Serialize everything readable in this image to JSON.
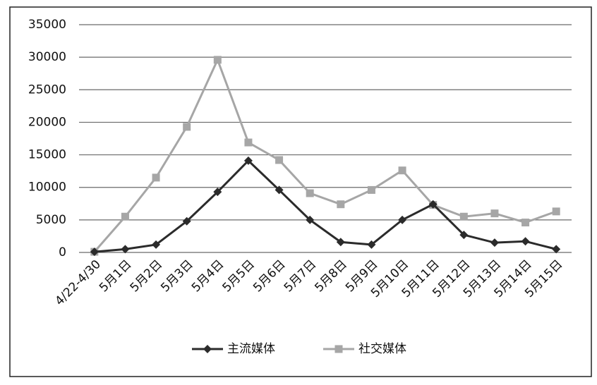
{
  "chart_data": {
    "type": "line",
    "categories": [
      "4/22-4/30",
      "5月1日",
      "5月2日",
      "5月3日",
      "5月4日",
      "5月5日",
      "5月6日",
      "5月7日",
      "5月8日",
      "5月9日",
      "5月10日",
      "5月11日",
      "5月12日",
      "5月13日",
      "5月14日",
      "5月15日"
    ],
    "series": [
      {
        "name": "主流媒体",
        "color": "#2b2b2b",
        "marker": "diamond",
        "values": [
          100,
          500,
          1200,
          4800,
          9300,
          14100,
          9600,
          5000,
          1600,
          1200,
          5000,
          7400,
          2700,
          1500,
          1700,
          500
        ]
      },
      {
        "name": "社交媒体",
        "color": "#a6a6a6",
        "marker": "square",
        "values": [
          100,
          5500,
          11500,
          19300,
          29600,
          16900,
          14200,
          9100,
          7400,
          9600,
          12600,
          7300,
          5500,
          6000,
          4600,
          6300
        ]
      }
    ],
    "ylim": [
      0,
      35000
    ],
    "yticks": [
      0,
      5000,
      10000,
      15000,
      20000,
      25000,
      30000,
      35000
    ],
    "grid": true,
    "legend": "bottom"
  }
}
